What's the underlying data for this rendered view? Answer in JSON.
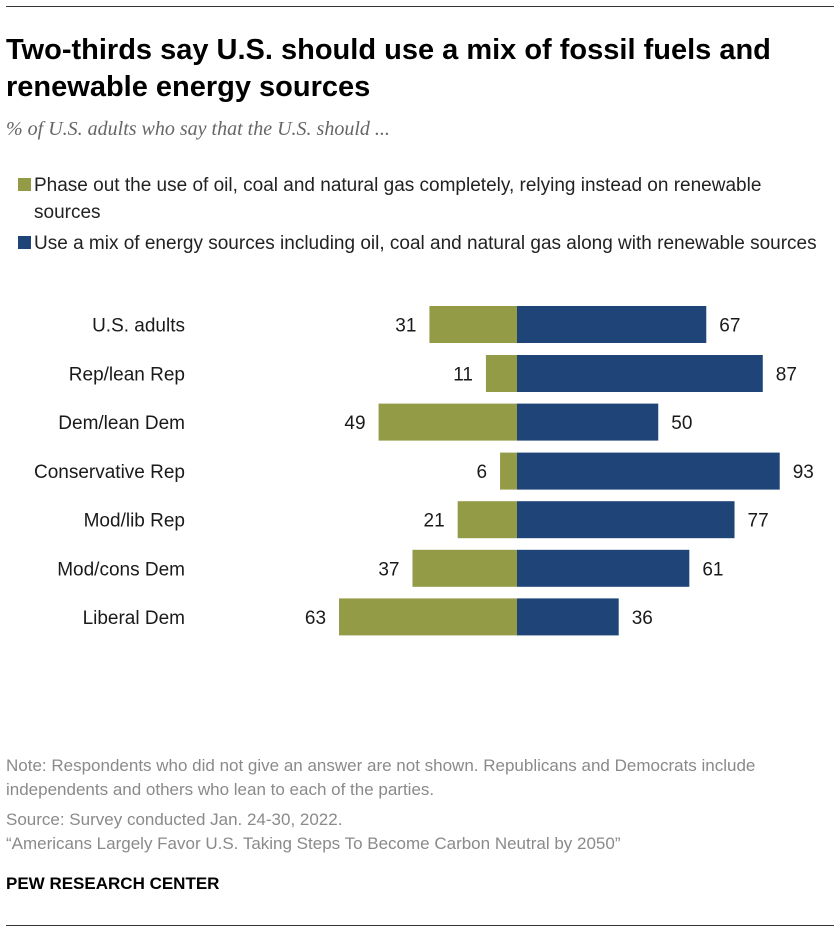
{
  "title": "Two-thirds say U.S. should use a mix of fossil fuels and renewable energy sources",
  "subtitle": "% of U.S. adults who say that the U.S. should ...",
  "colors": {
    "phase_out": "#949b47",
    "mix": "#1e4478"
  },
  "legend": [
    {
      "label": "Phase out the use of oil, coal and natural gas completely, relying instead on renewable sources"
    },
    {
      "label": "Use a mix of energy sources including oil, coal and natural gas along with renewable sources"
    }
  ],
  "chart_data": {
    "type": "bar",
    "orientation": "horizontal-diverging",
    "categories": [
      "U.S. adults",
      "Rep/lean Rep",
      "Dem/lean Dem",
      "Conservative Rep",
      "Mod/lib Rep",
      "Mod/cons Dem",
      "Liberal Dem"
    ],
    "groups": [
      [
        "U.S. adults"
      ],
      [
        "Rep/lean Rep",
        "Dem/lean Dem"
      ],
      [
        "Conservative Rep",
        "Mod/lib Rep",
        "Mod/cons Dem",
        "Liberal Dem"
      ]
    ],
    "series": [
      {
        "name": "Phase out the use of oil, coal and natural gas completely, relying instead on renewable sources",
        "values": [
          31,
          11,
          49,
          6,
          21,
          37,
          63
        ]
      },
      {
        "name": "Use a mix of energy sources including oil, coal and natural gas along with renewable sources",
        "values": [
          67,
          87,
          50,
          93,
          77,
          61,
          36
        ]
      }
    ],
    "xlim": [
      0,
      100
    ],
    "grid": false,
    "legend_position": "top"
  },
  "footer": {
    "note": "Note: Respondents who did not give an answer are not shown. Republicans and Democrats include independents and others who lean to each of the parties.",
    "source": "Source: Survey conducted Jan. 24-30, 2022.",
    "report": "“Americans Largely Favor U.S. Taking Steps To Become Carbon Neutral by 2050”",
    "org": "PEW RESEARCH CENTER"
  }
}
